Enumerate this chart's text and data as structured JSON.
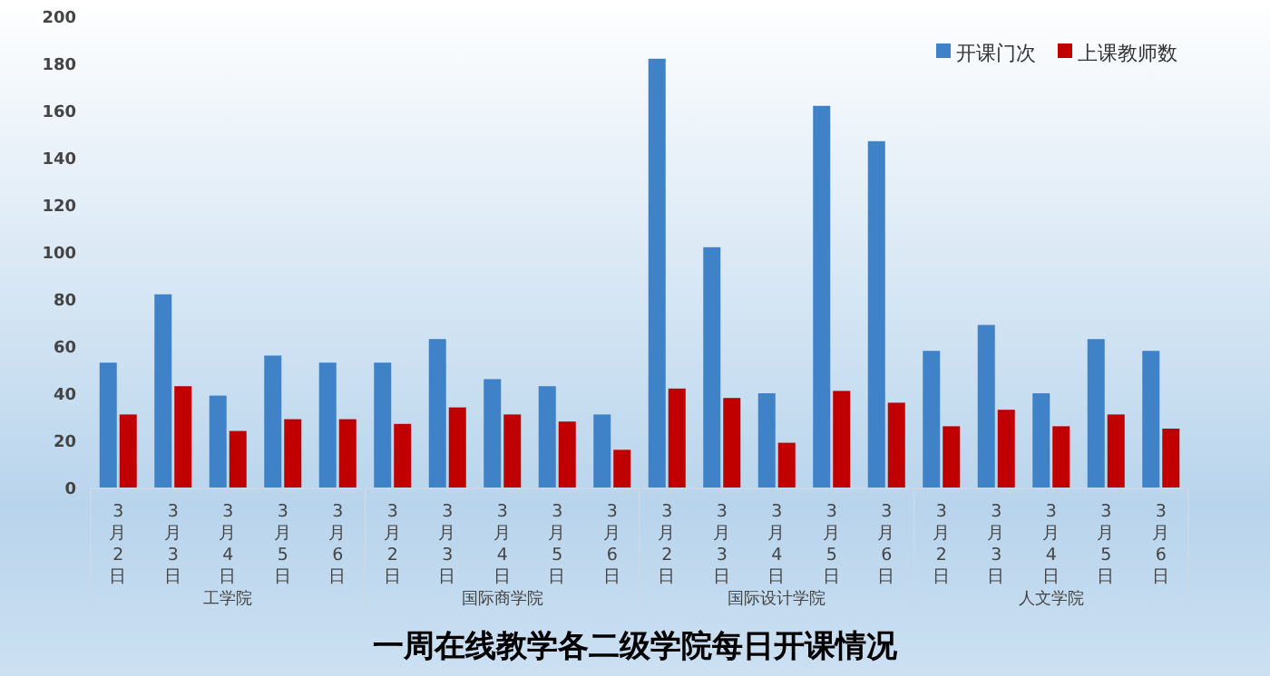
{
  "chart_data": {
    "type": "bar",
    "title": "一周在线教学各二级学院每日开课情况",
    "categories": [
      "3月2日",
      "3月3日",
      "3月4日",
      "3月5日",
      "3月6日",
      "3月2日",
      "3月3日",
      "3月4日",
      "3月5日",
      "3月6日",
      "3月2日",
      "3月3日",
      "3月4日",
      "3月5日",
      "3月6日",
      "3月2日",
      "3月3日",
      "3月4日",
      "3月5日",
      "3月6日"
    ],
    "series": [
      {
        "name": "开课门次",
        "color": "#3f82c8",
        "values": [
          53,
          82,
          39,
          56,
          53,
          53,
          63,
          46,
          43,
          31,
          182,
          102,
          40,
          162,
          147,
          58,
          69,
          40,
          63,
          58
        ]
      },
      {
        "name": "上课教师数",
        "color": "#c00000",
        "values": [
          31,
          43,
          24,
          29,
          29,
          27,
          34,
          31,
          28,
          16,
          42,
          38,
          19,
          41,
          36,
          26,
          33,
          26,
          31,
          25
        ]
      }
    ],
    "annotations": [
      "工学院",
      "国际商学院",
      "国际设计学院",
      "人文学院"
    ],
    "ylim": [
      0,
      200
    ],
    "yticks": [
      0,
      20,
      40,
      60,
      80,
      100,
      120,
      140,
      160,
      180,
      200
    ],
    "grid": false,
    "legend": "top right"
  }
}
